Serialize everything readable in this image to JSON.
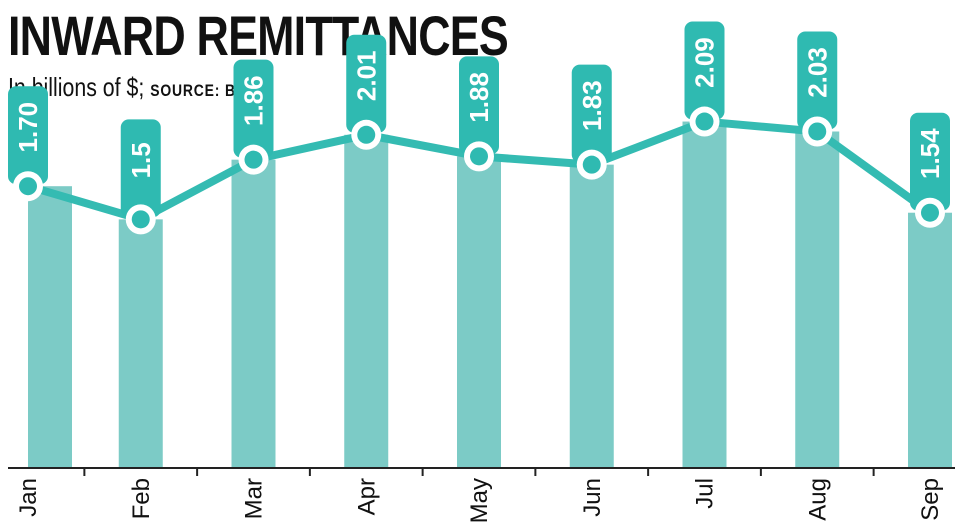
{
  "title": "INWARD REMITTANCES",
  "subtitle": "In billions of $;",
  "source_label": "SOURCE: BB",
  "colors": {
    "bar": "#7ccbc6",
    "line": "#34bbb2",
    "label_bg": "#2fbab1",
    "label_text": "#ffffff",
    "marker_fill": "#2fbab1",
    "marker_ring": "#ffffff",
    "axis": "#222222",
    "text": "#111111"
  },
  "chart_data": {
    "type": "bar",
    "categories": [
      "Jan",
      "Feb",
      "Mar",
      "Apr",
      "May",
      "Jun",
      "Jul",
      "Aug",
      "Sep"
    ],
    "values": [
      1.7,
      1.5,
      1.86,
      2.01,
      1.88,
      1.83,
      2.09,
      2.03,
      1.54
    ],
    "data_labels": [
      "1.70",
      "1.5",
      "1.86",
      "2.01",
      "1.88",
      "1.83",
      "2.09",
      "2.03",
      "1.54"
    ],
    "overlay": "line",
    "title": "INWARD REMITTANCES",
    "subtitle": "In billions of $;",
    "source": "SOURCE: BB",
    "ylim": [
      0,
      2.22
    ],
    "grid": false,
    "legend": "none"
  }
}
